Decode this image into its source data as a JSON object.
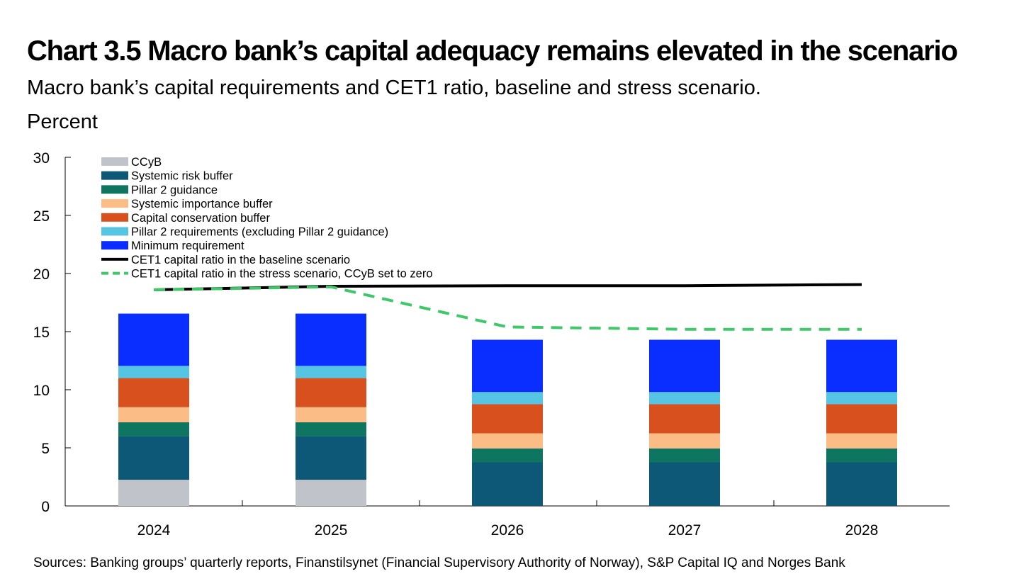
{
  "title": "Chart 3.5 Macro bank’s capital adequacy remains elevated in the scenario",
  "subtitle": "Macro bank’s capital requirements and CET1 ratio, baseline and stress scenario.",
  "unit": "Percent",
  "source": "Sources: Banking groups’ quarterly reports, Finanstilsynet (Financial Supervisory Authority of Norway), S&P Capital IQ and Norges Bank",
  "chart_data": {
    "type": "bar",
    "stacked": true,
    "categories": [
      "2024",
      "2025",
      "2026",
      "2027",
      "2028"
    ],
    "ylim": [
      0,
      30
    ],
    "yticks": [
      0,
      5,
      10,
      15,
      20,
      25,
      30
    ],
    "ylabel": "Percent",
    "legend_position": "top-left",
    "series": [
      {
        "name": "CCyB",
        "color": "#c1c3ca",
        "values": [
          2.25,
          2.25,
          0,
          0,
          0
        ]
      },
      {
        "name": "Systemic risk buffer",
        "color": "#0c5876",
        "values": [
          3.75,
          3.75,
          3.75,
          3.75,
          3.75
        ]
      },
      {
        "name": "Pillar 2 guidance",
        "color": "#0e7560",
        "values": [
          1.2,
          1.2,
          1.2,
          1.2,
          1.2
        ]
      },
      {
        "name": "Systemic importance buffer",
        "color": "#fbbd85",
        "values": [
          1.3,
          1.3,
          1.3,
          1.3,
          1.3
        ]
      },
      {
        "name": "Capital conservation buffer",
        "color": "#d8501d",
        "values": [
          2.5,
          2.5,
          2.5,
          2.5,
          2.5
        ]
      },
      {
        "name": "Pillar 2 requirements (excluding Pillar 2 guidance)",
        "color": "#56c5e4",
        "values": [
          1.05,
          1.05,
          1.05,
          1.05,
          1.05
        ]
      },
      {
        "name": "Minimum requirement",
        "color": "#0a2eff",
        "values": [
          4.5,
          4.5,
          4.5,
          4.5,
          4.5
        ]
      }
    ],
    "lines": [
      {
        "name": "CET1 capital ratio in the baseline scenario",
        "color": "#000000",
        "style": "solid",
        "values": [
          18.6,
          18.9,
          18.95,
          18.95,
          19.05
        ]
      },
      {
        "name": "CET1 capital ratio in the stress scenario, CCyB set to zero",
        "color": "#3fc76a",
        "style": "dashed",
        "values": [
          18.6,
          18.85,
          15.4,
          15.2,
          15.2
        ]
      }
    ]
  }
}
